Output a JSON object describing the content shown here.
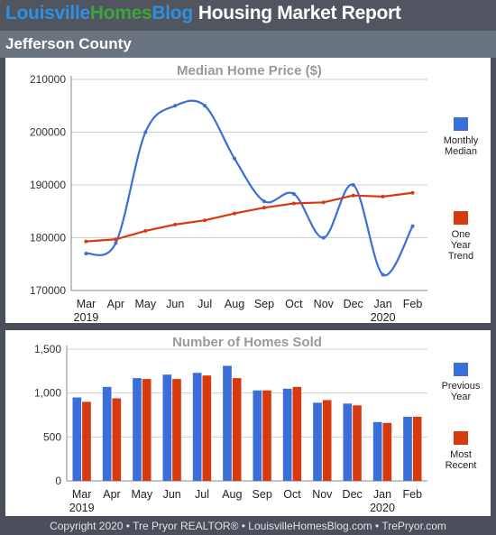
{
  "header": {
    "brand_part1": "Louisville",
    "brand_part2": "Homes",
    "brand_part3": "Blog",
    "report_title": "Housing Market Report"
  },
  "region": "Jefferson County",
  "footer": "Copyright 2020 • Tre Pryor REALTOR® • LouisvilleHomesBlog.com • TrePryor.com",
  "colors": {
    "blue": "#3a6ed8",
    "red": "#d83a10",
    "brand_blue": "#2f8fe0",
    "brand_green": "#3ea23e"
  },
  "chart_data": [
    {
      "type": "line",
      "title": "Median Home Price ($)",
      "categories": [
        "Mar",
        "Apr",
        "May",
        "Jun",
        "Jul",
        "Aug",
        "Sep",
        "Oct",
        "Nov",
        "Dec",
        "Jan",
        "Feb"
      ],
      "year_labels": [
        "2019",
        "",
        "",
        "",
        "",
        "",
        "",
        "",
        "",
        "",
        "2020",
        ""
      ],
      "ylim": [
        170000,
        210000
      ],
      "yticks": [
        170000,
        180000,
        190000,
        200000,
        210000
      ],
      "ytick_labels": [
        "170000",
        "180000",
        "190000",
        "200000",
        "210000"
      ],
      "grid": true,
      "legend_position": "right",
      "series": [
        {
          "name": "Monthly Median",
          "legend_lines": [
            "Monthly",
            "Median"
          ],
          "color": "#3a6ed8",
          "values": [
            177000,
            179000,
            200000,
            205000,
            205000,
            195000,
            186900,
            188300,
            180000,
            190000,
            173000,
            182200
          ]
        },
        {
          "name": "One Year Trend",
          "legend_lines": [
            "One",
            "Year",
            "Trend"
          ],
          "color": "#d83a10",
          "values": [
            179300,
            179700,
            181300,
            182500,
            183300,
            184600,
            185700,
            186500,
            186700,
            188000,
            187800,
            188500
          ]
        }
      ]
    },
    {
      "type": "bar",
      "title": "Number of Homes Sold",
      "categories": [
        "Mar",
        "Apr",
        "May",
        "Jun",
        "Jul",
        "Aug",
        "Sep",
        "Oct",
        "Nov",
        "Dec",
        "Jan",
        "Feb"
      ],
      "year_labels": [
        "2019",
        "",
        "",
        "",
        "",
        "",
        "",
        "",
        "",
        "",
        "2020",
        ""
      ],
      "ylim": [
        0,
        1500
      ],
      "yticks": [
        0,
        500,
        1000,
        1500
      ],
      "ytick_labels": [
        "0",
        "500",
        "1,000",
        "1,500"
      ],
      "grid": true,
      "legend_position": "right",
      "series": [
        {
          "name": "Previous Year",
          "legend_lines": [
            "Previous",
            "Year"
          ],
          "color": "#3a6ed8",
          "values": [
            950,
            1070,
            1170,
            1210,
            1230,
            1310,
            1030,
            1050,
            890,
            880,
            670,
            730
          ]
        },
        {
          "name": "Most Recent",
          "legend_lines": [
            "Most",
            "Recent"
          ],
          "color": "#d83a10",
          "values": [
            900,
            940,
            1160,
            1160,
            1200,
            1170,
            1030,
            1070,
            920,
            860,
            660,
            730
          ]
        }
      ]
    }
  ]
}
